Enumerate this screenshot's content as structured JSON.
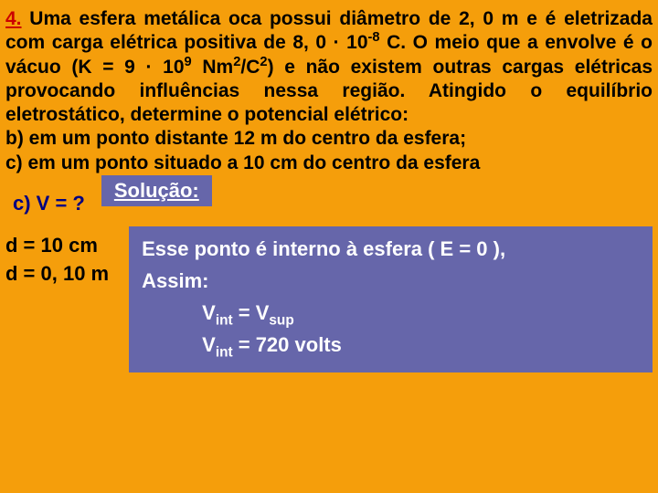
{
  "colors": {
    "background": "#f59e0b",
    "problem_number": "#cc0000",
    "part_label": "#000080",
    "box_bg": "#6666aa",
    "box_text": "#ffffff",
    "body_text": "#000000"
  },
  "problem": {
    "number": "4.",
    "line1a": "Uma esfera metálica oca possui diâmetro de 2, 0 m e é",
    "line2": "eletrizada com carga elétrica positiva de 8, 0 · 10",
    "line2_exp": "-8",
    "line2b": " C. O meio",
    "line3a": "que a envolve é o vácuo (K = 9 · 10",
    "line3_exp": "9",
    "line3b": " Nm",
    "line3_exp2": "2",
    "line3c": "/C",
    "line3_exp3": "2",
    "line3d": ") e não existem",
    "line4": "outras cargas elétricas provocando influências nessa região.",
    "line5": "Atingido o equilíbrio eletrostático, determine o potencial elétrico:",
    "line6": "b) em um ponto distante 12 m do centro da esfera;",
    "line7": "c) em um ponto situado a 10 cm do centro da esfera"
  },
  "part": {
    "label": "c) V = ?"
  },
  "solution_label": "Solução:",
  "data": {
    "d1": "d = 10 cm",
    "d2": "d = 0, 10 m"
  },
  "answer": {
    "line1": "Esse ponto é interno à esfera ( E = 0 ),",
    "line2": "Assim:",
    "line3a": "V",
    "line3_sub1": "int",
    "line3b": " =  V",
    "line3_sub2": "sup",
    "line4a": "V",
    "line4_sub": "int",
    "line4b": " = 720 volts"
  }
}
